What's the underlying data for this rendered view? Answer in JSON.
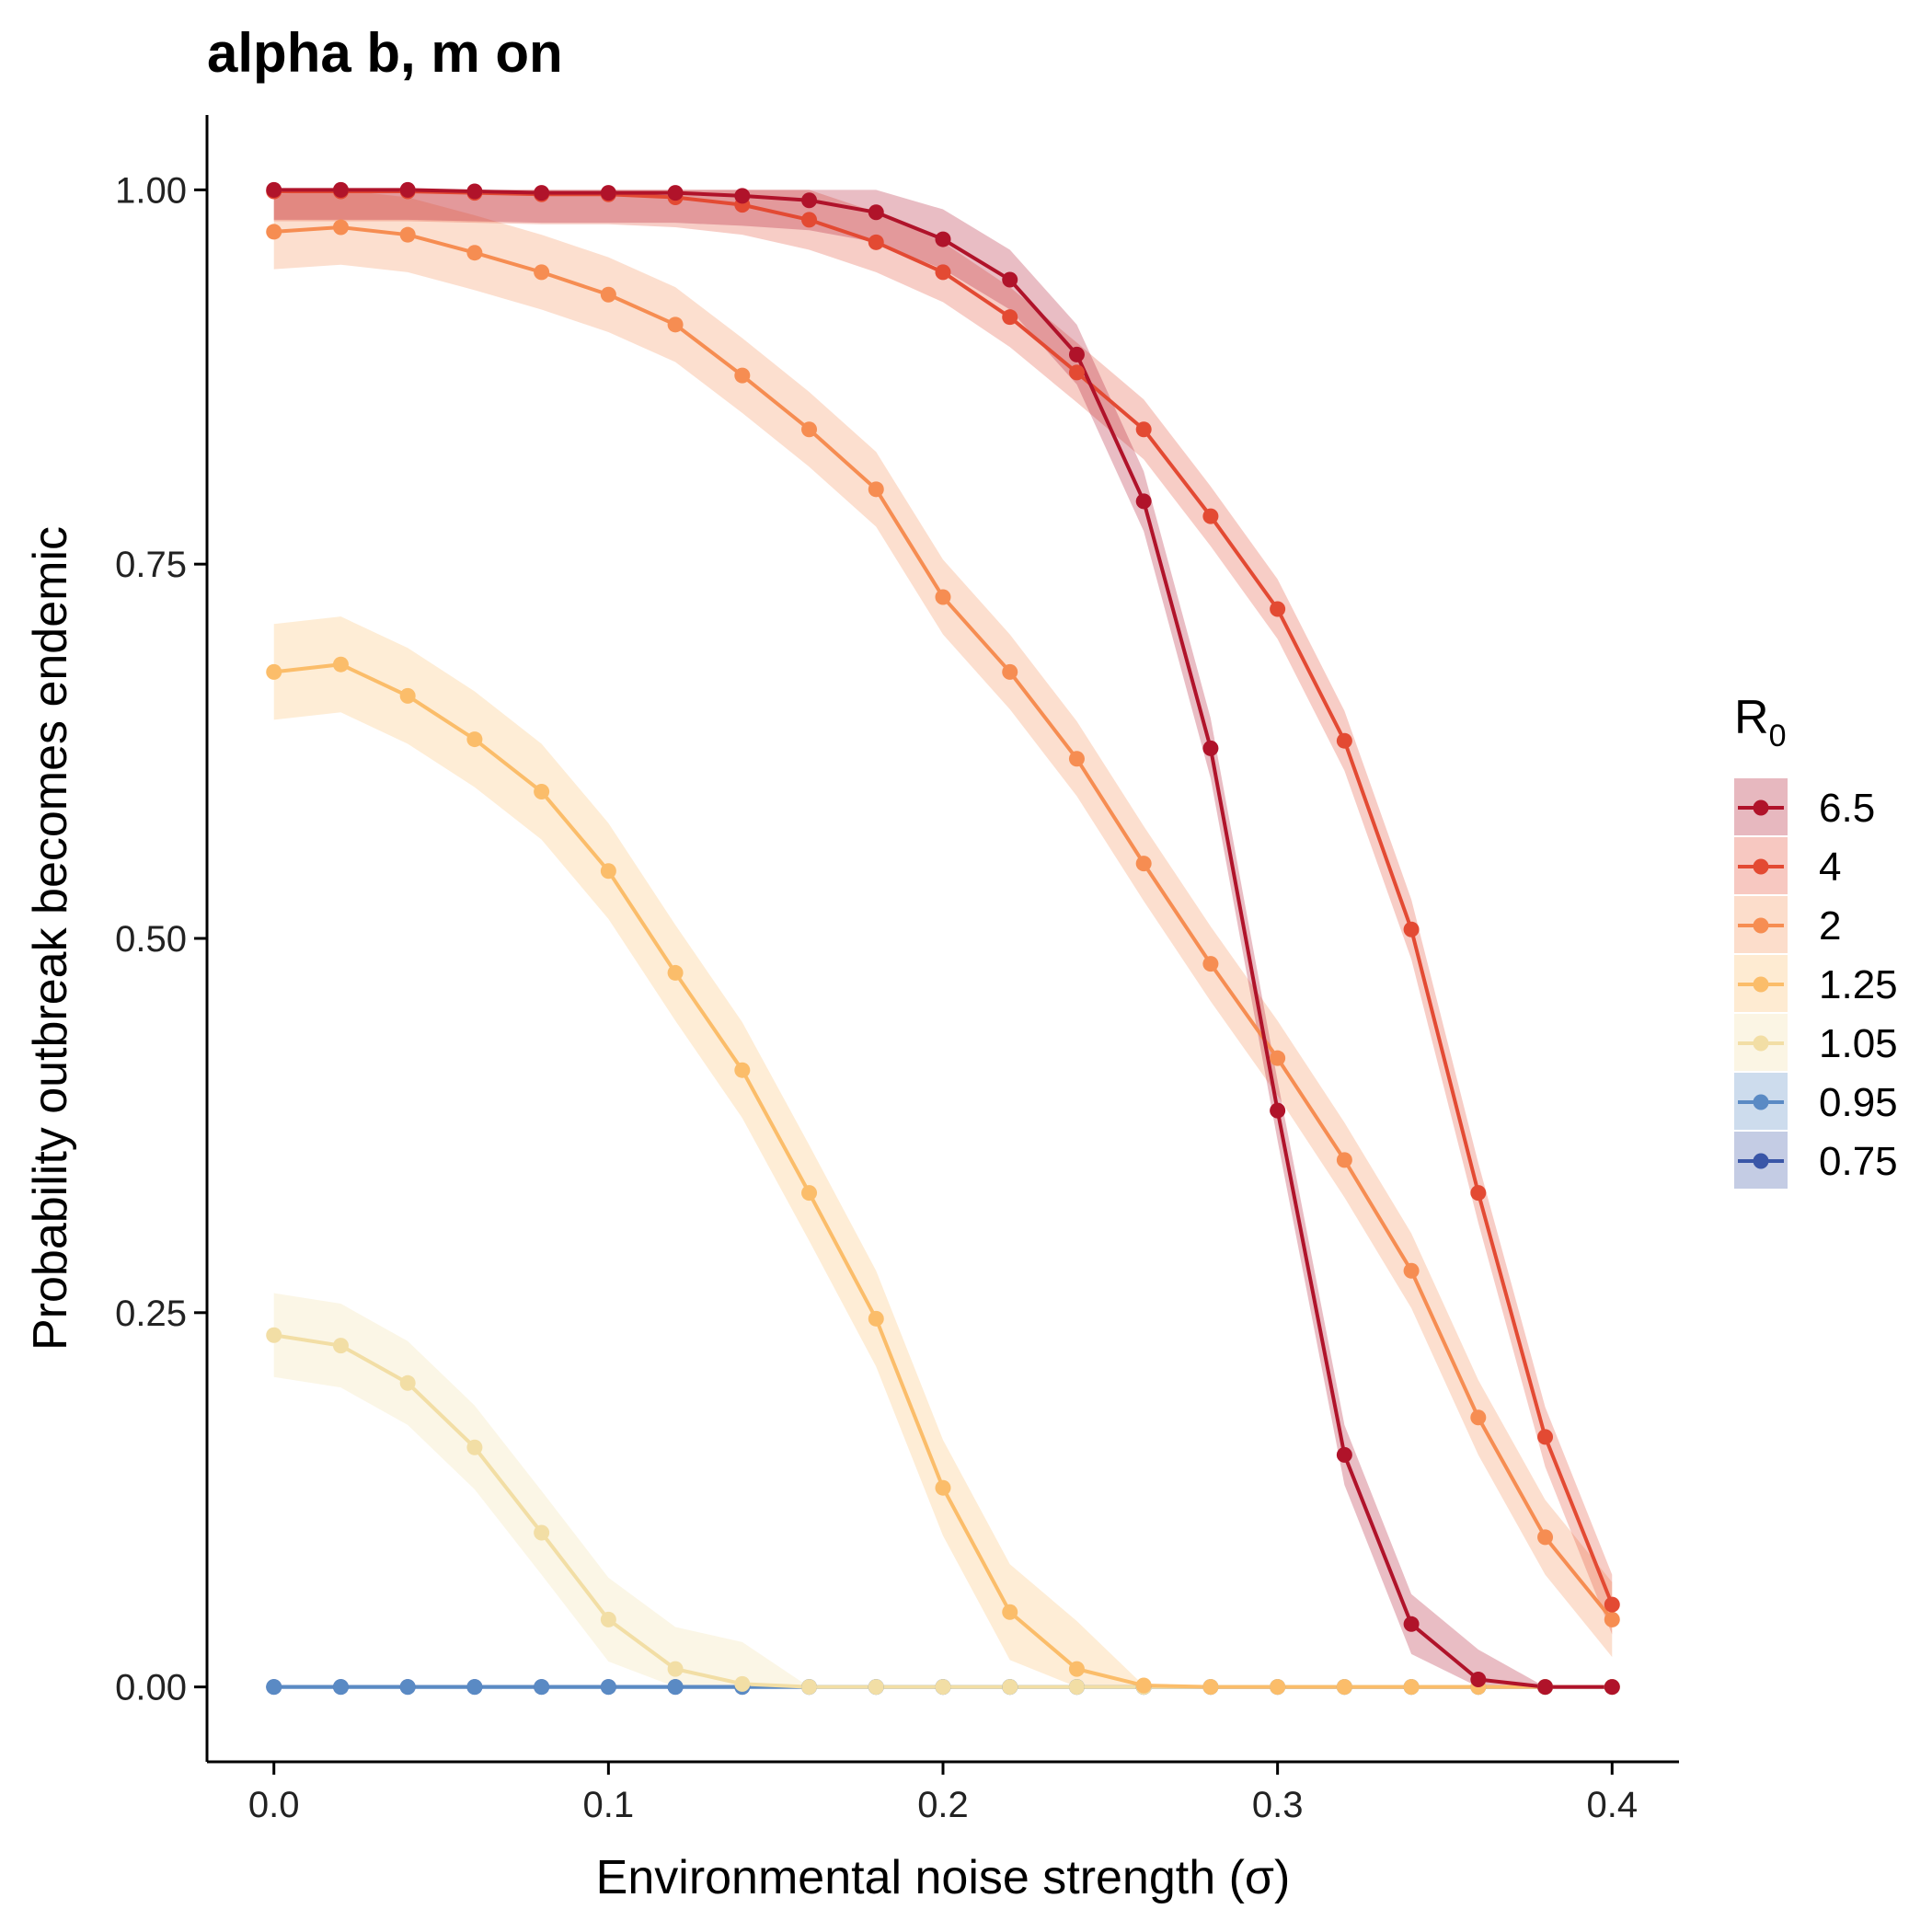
{
  "chart_data": {
    "type": "line",
    "title": "alpha b, m on",
    "xlabel": "Environmental noise strength (σ)",
    "ylabel": "Probability outbreak becomes endemic",
    "xlim": [
      -0.02,
      0.42
    ],
    "ylim": [
      -0.05,
      1.05
    ],
    "x_ticks": [
      0.0,
      0.1,
      0.2,
      0.3,
      0.4
    ],
    "x_tick_labels": [
      "0.0",
      "0.1",
      "0.2",
      "0.3",
      "0.4"
    ],
    "y_ticks": [
      0.0,
      0.25,
      0.5,
      0.75,
      1.0
    ],
    "y_tick_labels": [
      "0.00",
      "0.25",
      "0.50",
      "0.75",
      "1.00"
    ],
    "grid": false,
    "legend": {
      "title": "R",
      "title_subscript": "0",
      "position": "right"
    },
    "x": [
      0.0,
      0.02,
      0.04,
      0.06,
      0.08,
      0.1,
      0.12,
      0.14,
      0.16,
      0.18,
      0.2,
      0.22,
      0.24,
      0.26,
      0.28,
      0.3,
      0.32,
      0.34,
      0.36,
      0.38,
      0.4
    ],
    "series": [
      {
        "name": "0.75",
        "color": "#3a56a7",
        "band_color": "#3a56a7",
        "values": [
          0,
          0,
          0,
          0,
          0,
          0,
          0,
          0,
          0,
          0,
          0,
          0,
          0,
          0,
          0,
          0,
          0,
          0,
          0,
          0,
          0
        ],
        "band": 0.0
      },
      {
        "name": "0.95",
        "color": "#5a8ac4",
        "band_color": "#5a8ac4",
        "values": [
          0,
          0,
          0,
          0,
          0,
          0,
          0,
          0,
          0,
          0,
          0,
          0,
          0,
          0,
          0,
          0,
          0,
          0,
          0,
          0,
          0
        ],
        "band": 0.0
      },
      {
        "name": "1.05",
        "color": "#f2dea5",
        "band_color": "#f2dea5",
        "values": [
          0.235,
          0.228,
          0.203,
          0.16,
          0.103,
          0.045,
          0.012,
          0.002,
          0,
          0,
          0,
          0,
          0,
          0,
          0,
          0,
          0,
          0,
          0,
          0,
          0
        ],
        "band": 0.028
      },
      {
        "name": "1.25",
        "color": "#fbbd6a",
        "band_color": "#fbbd6a",
        "values": [
          0.678,
          0.683,
          0.662,
          0.633,
          0.598,
          0.545,
          0.477,
          0.412,
          0.33,
          0.246,
          0.133,
          0.05,
          0.012,
          0.001,
          0,
          0,
          0,
          0,
          0,
          0,
          0
        ],
        "band": 0.032
      },
      {
        "name": "2",
        "color": "#f68d52",
        "band_color": "#f68d52",
        "values": [
          0.972,
          0.975,
          0.97,
          0.958,
          0.945,
          0.93,
          0.91,
          0.876,
          0.84,
          0.8,
          0.728,
          0.678,
          0.62,
          0.55,
          0.483,
          0.42,
          0.352,
          0.278,
          0.18,
          0.1,
          0.045
        ],
        "band": 0.025
      },
      {
        "name": "4",
        "color": "#e34a33",
        "band_color": "#e34a33",
        "values": [
          0.999,
          0.999,
          0.999,
          0.998,
          0.997,
          0.997,
          0.995,
          0.99,
          0.98,
          0.965,
          0.945,
          0.915,
          0.878,
          0.84,
          0.782,
          0.72,
          0.632,
          0.506,
          0.33,
          0.167,
          0.055
        ],
        "band": 0.02
      },
      {
        "name": "6.5",
        "color": "#b0132a",
        "band_color": "#b0132a",
        "values": [
          1.0,
          1.0,
          1.0,
          0.999,
          0.998,
          0.998,
          0.998,
          0.996,
          0.993,
          0.985,
          0.967,
          0.94,
          0.89,
          0.792,
          0.627,
          0.385,
          0.155,
          0.042,
          0.005,
          0,
          0
        ],
        "band": 0.02
      }
    ]
  }
}
